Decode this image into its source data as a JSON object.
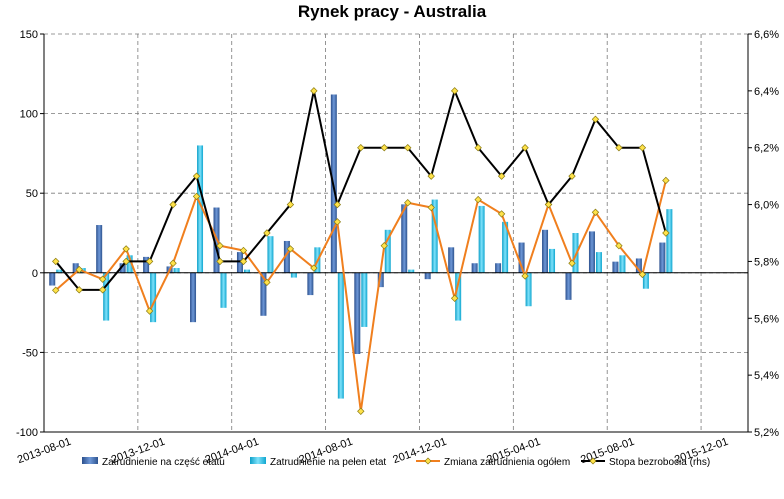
{
  "chart_data": {
    "type": "bar-line-combo",
    "title": "Rynek pracy - Australia",
    "x_tick_labels": [
      "2013-08-01",
      "2013-12-01",
      "2014-04-01",
      "2014-08-01",
      "2014-12-01",
      "2015-04-01",
      "2015-08-01",
      "2015-12-01"
    ],
    "months": [
      "2013-08",
      "2013-09",
      "2013-10",
      "2013-11",
      "2013-12",
      "2014-01",
      "2014-02",
      "2014-03",
      "2014-04",
      "2014-05",
      "2014-06",
      "2014-07",
      "2014-08",
      "2014-09",
      "2014-10",
      "2014-11",
      "2014-12",
      "2015-01",
      "2015-02",
      "2015-03",
      "2015-04",
      "2015-05",
      "2015-06",
      "2015-07",
      "2015-08",
      "2015-09",
      "2015-10"
    ],
    "ylim_left": [
      -100,
      150
    ],
    "yticks_left": [
      -100,
      -50,
      0,
      50,
      100,
      150
    ],
    "ylim_right": [
      5.2,
      6.6
    ],
    "yticks_right_labels": [
      "5,2%",
      "5,4%",
      "5,6%",
      "5,8%",
      "6,0%",
      "6,2%",
      "6,4%",
      "6,6%"
    ],
    "grid": true,
    "legend_position": "bottom",
    "colors": {
      "part_time": "#3f6fb5",
      "full_time": "#1fc0e8",
      "total_change": "#f07f1e",
      "unemployment": "#000000",
      "marker_fill": "#ffe24a",
      "grid": "#7a7a7a"
    },
    "series": [
      {
        "name": "Zatrudnienie na część etatu",
        "type": "bar",
        "axis": "left",
        "values": [
          -8,
          6,
          30,
          6,
          10,
          4,
          -31,
          41,
          13,
          -27,
          20,
          -14,
          112,
          -51,
          -9,
          43,
          -4,
          16,
          6,
          6,
          19,
          27,
          -17,
          26,
          7,
          9,
          19
        ]
      },
      {
        "name": "Zatrudnienie na pełen etat",
        "type": "bar",
        "axis": "left",
        "values": [
          2,
          3,
          -30,
          11,
          -31,
          3,
          80,
          -22,
          2,
          23,
          -3,
          16,
          -79,
          -34,
          27,
          2,
          46,
          -30,
          42,
          32,
          -21,
          15,
          25,
          13,
          11,
          -10,
          40
        ]
      },
      {
        "name": "Zmiana zatrudnienia ogółem",
        "type": "line",
        "axis": "left",
        "values": [
          -11,
          2,
          -4,
          15,
          -24,
          6,
          48,
          17,
          14,
          -6,
          15,
          3,
          32,
          -87,
          17,
          44,
          41,
          -16,
          46,
          37,
          -2,
          43,
          6,
          38,
          17,
          -1,
          58
        ]
      },
      {
        "name": "Stopa bezrobocia (rhs)",
        "type": "line",
        "axis": "right",
        "values": [
          5.8,
          5.7,
          5.7,
          5.8,
          5.8,
          6.0,
          6.1,
          5.8,
          5.8,
          5.9,
          6.0,
          6.4,
          6.0,
          6.2,
          6.2,
          6.2,
          6.1,
          6.4,
          6.2,
          6.1,
          6.2,
          6.0,
          6.1,
          6.3,
          6.2,
          6.2,
          5.9
        ]
      }
    ]
  }
}
